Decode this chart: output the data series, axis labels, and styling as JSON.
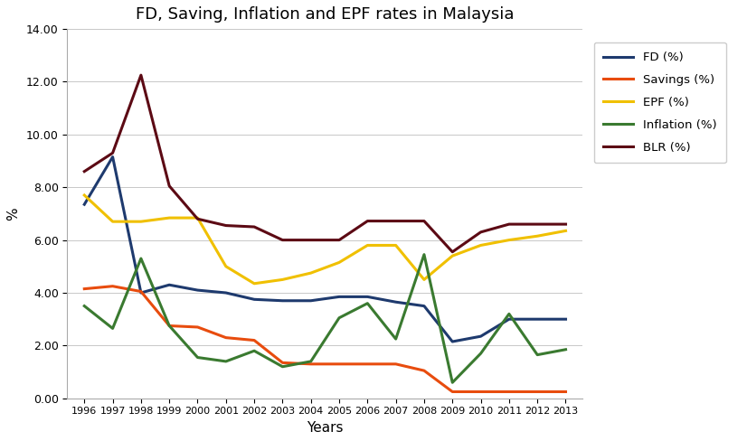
{
  "title": "FD, Saving, Inflation and EPF rates in Malaysia",
  "xlabel": "Years",
  "ylabel": "%",
  "years": [
    1996,
    1997,
    1998,
    1999,
    2000,
    2001,
    2002,
    2003,
    2004,
    2005,
    2006,
    2007,
    2008,
    2009,
    2010,
    2011,
    2012,
    2013
  ],
  "FD": [
    7.35,
    9.15,
    4.0,
    4.3,
    4.1,
    4.0,
    3.75,
    3.7,
    3.7,
    3.85,
    3.85,
    3.65,
    3.5,
    2.15,
    2.35,
    3.0,
    3.0,
    3.0
  ],
  "Savings": [
    4.15,
    4.25,
    4.05,
    2.75,
    2.7,
    2.3,
    2.2,
    1.35,
    1.3,
    1.3,
    1.3,
    1.3,
    1.05,
    0.25,
    0.25,
    0.25,
    0.25,
    0.25
  ],
  "EPF": [
    7.7,
    6.7,
    6.7,
    6.84,
    6.84,
    5.0,
    4.35,
    4.5,
    4.75,
    5.15,
    5.8,
    5.8,
    4.5,
    5.4,
    5.8,
    6.0,
    6.15,
    6.35
  ],
  "Inflation": [
    3.5,
    2.65,
    5.3,
    2.75,
    1.55,
    1.4,
    1.8,
    1.2,
    1.4,
    3.05,
    3.6,
    2.25,
    5.45,
    0.6,
    1.7,
    3.2,
    1.65,
    1.85
  ],
  "BLR": [
    8.6,
    9.3,
    12.25,
    8.05,
    6.8,
    6.55,
    6.5,
    6.0,
    6.0,
    6.0,
    6.72,
    6.72,
    6.72,
    5.55,
    6.3,
    6.6,
    6.6,
    6.6
  ],
  "FD_color": "#1e3a6e",
  "Savings_color": "#e84c0e",
  "EPF_color": "#f0c000",
  "Inflation_color": "#3a7a30",
  "BLR_color": "#5c0a14",
  "ylim": [
    0,
    14.0
  ],
  "yticks": [
    0.0,
    2.0,
    4.0,
    6.0,
    8.0,
    10.0,
    12.0,
    14.0
  ],
  "ytick_labels": [
    "0.00",
    "2.00",
    "4.00",
    "6.00",
    "8.00",
    "10.00",
    "12.00",
    "14.00"
  ],
  "linewidth": 2.2,
  "title_fontsize": 13
}
